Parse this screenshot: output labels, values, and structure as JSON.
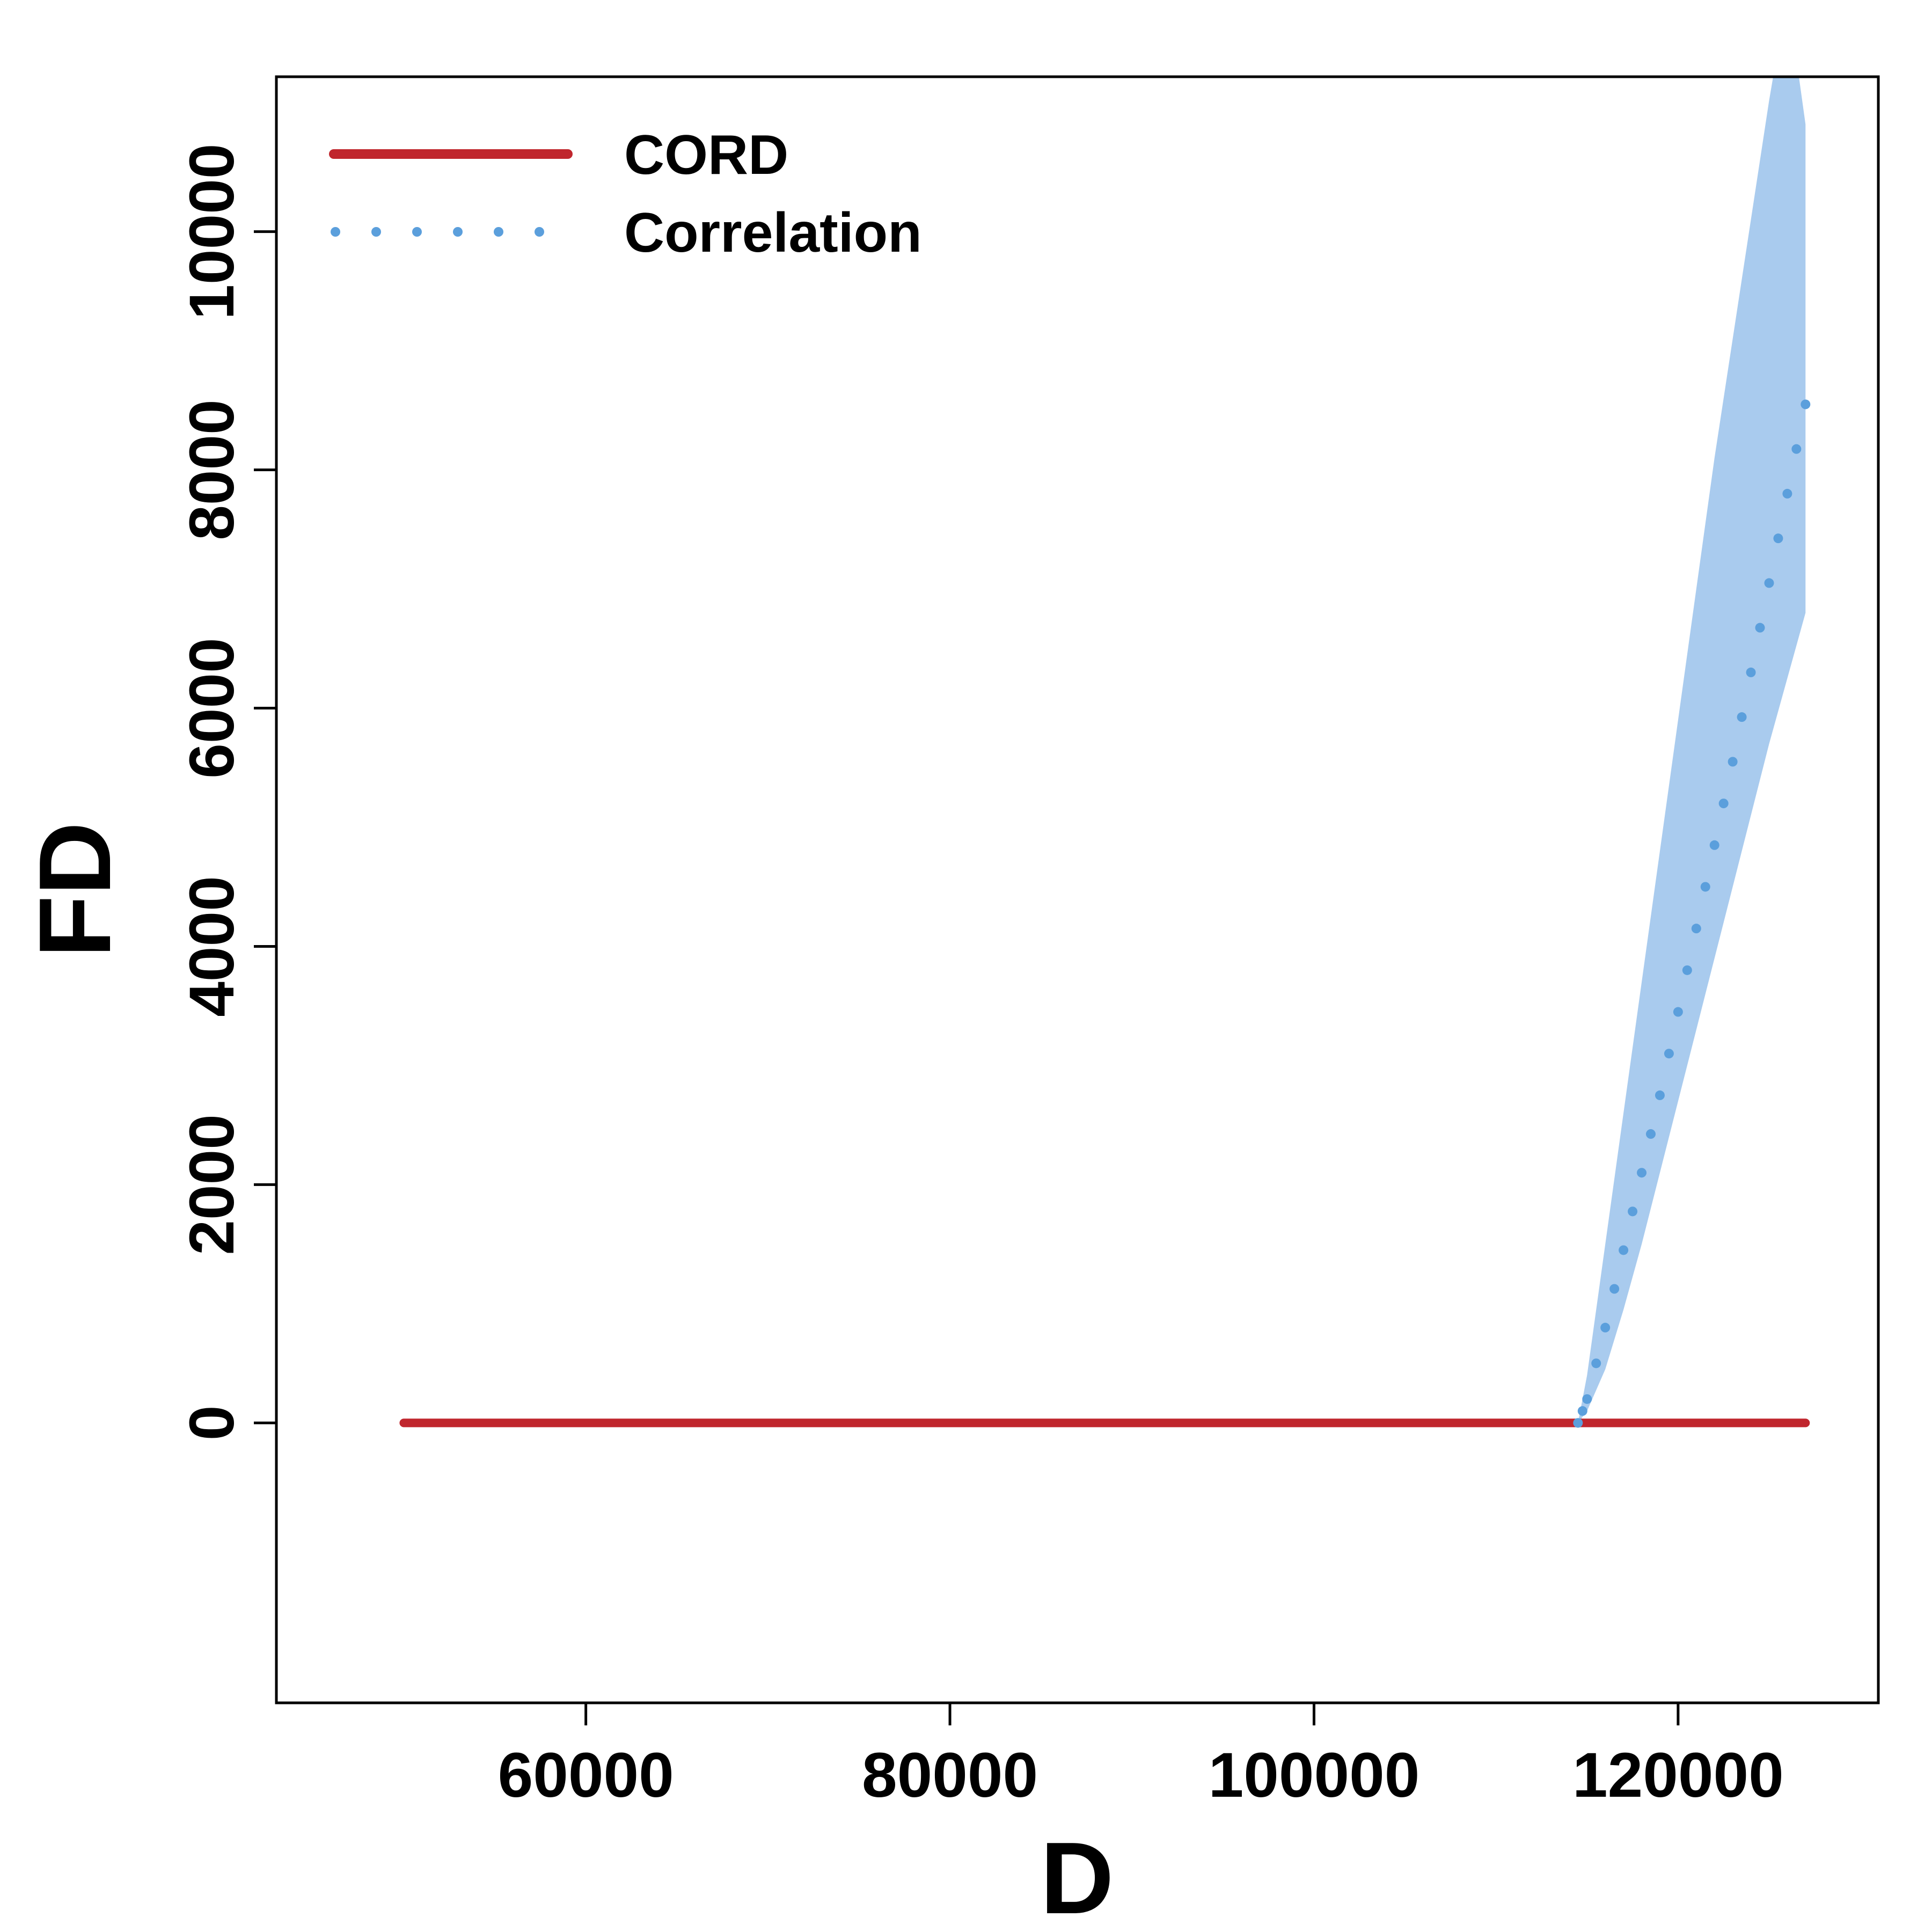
{
  "chart_data": {
    "type": "line",
    "xlabel": "D",
    "ylabel": "FD",
    "xlim": [
      43000,
      131000
    ],
    "ylim": [
      -2350,
      11300
    ],
    "x_ticks": [
      60000,
      80000,
      100000,
      120000
    ],
    "y_ticks": [
      0,
      2000,
      4000,
      6000,
      8000,
      10000
    ],
    "x_tick_labels": [
      "60000",
      "80000",
      "100000",
      "120000"
    ],
    "y_tick_labels": [
      "0",
      "2000",
      "4000",
      "6000",
      "8000",
      "10000"
    ],
    "legend": {
      "position": "top-left",
      "entries": [
        {
          "label": "CORD",
          "style": "solid",
          "color": "#c0262d"
        },
        {
          "label": "Correlation",
          "style": "dotted",
          "color": "#5b9fdc"
        }
      ]
    },
    "series": [
      {
        "name": "CORD",
        "style": "solid",
        "color": "#c0262d",
        "x": [
          50000,
          127000
        ],
        "y": [
          0,
          0
        ]
      },
      {
        "name": "Correlation",
        "style": "dotted",
        "color": "#5b9fdc",
        "band_color": "#a9cbee",
        "x": [
          114500,
          115000,
          116000,
          117000,
          118000,
          119000,
          120000,
          121000,
          122000,
          123000,
          124000,
          125000,
          126000,
          127000
        ],
        "y": [
          0,
          200,
          800,
          1450,
          2100,
          2750,
          3450,
          4150,
          4850,
          5550,
          6300,
          7050,
          7800,
          8550
        ],
        "lower": [
          0,
          100,
          450,
          950,
          1500,
          2100,
          2700,
          3300,
          3900,
          4500,
          5100,
          5700,
          6250,
          6800
        ],
        "upper": [
          0,
          400,
          1500,
          2600,
          3700,
          4800,
          5900,
          7000,
          8100,
          9100,
          10100,
          11100,
          12000,
          10900
        ]
      }
    ]
  }
}
